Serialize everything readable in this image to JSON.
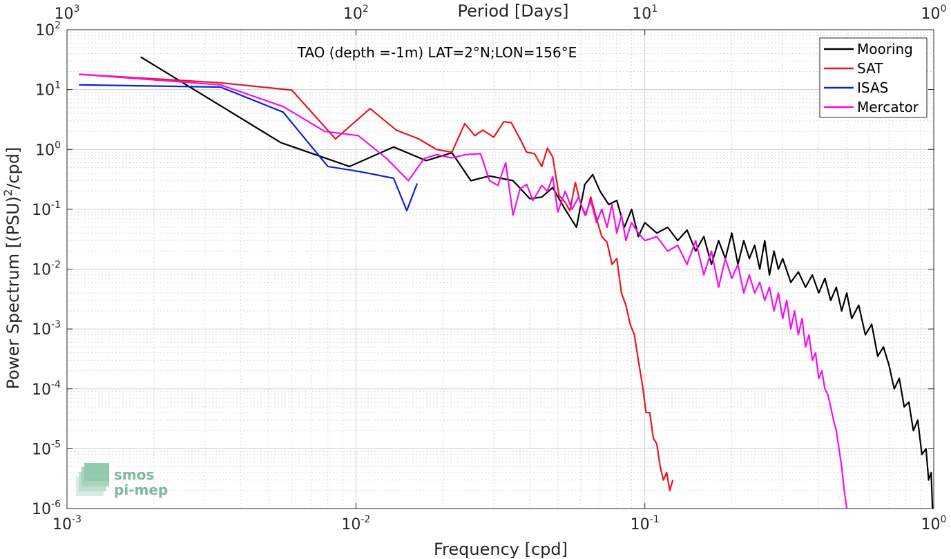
{
  "chart_data": {
    "type": "line",
    "title": "TAO (depth =-1m) LAT=2°N;LON=156°E",
    "xlabel": "Frequency [cpd]",
    "ylabel_main": "Power Spectrum [(PSU)",
    "ylabel_sup": "2",
    "ylabel_tail": "/cpd]",
    "top_axis_label": "Period [Days]",
    "x_scale": "log",
    "y_scale": "log",
    "xlim": [
      0.001,
      1
    ],
    "ylim": [
      1e-06,
      100
    ],
    "grid": true,
    "legend_placement": "top-right",
    "x_ticks": [
      {
        "value": 0.001,
        "base": "10",
        "exp": "-3"
      },
      {
        "value": 0.01,
        "base": "10",
        "exp": "-2"
      },
      {
        "value": 0.1,
        "base": "10",
        "exp": "-1"
      },
      {
        "value": 1,
        "base": "10",
        "exp": "0"
      }
    ],
    "y_ticks": [
      {
        "value": 1e-06,
        "base": "10",
        "exp": "-6"
      },
      {
        "value": 1e-05,
        "base": "10",
        "exp": "-5"
      },
      {
        "value": 0.0001,
        "base": "10",
        "exp": "-4"
      },
      {
        "value": 0.001,
        "base": "10",
        "exp": "-3"
      },
      {
        "value": 0.01,
        "base": "10",
        "exp": "-2"
      },
      {
        "value": 0.1,
        "base": "10",
        "exp": "-1"
      },
      {
        "value": 1,
        "base": "10",
        "exp": "0"
      },
      {
        "value": 10,
        "base": "10",
        "exp": "1"
      },
      {
        "value": 100,
        "base": "10",
        "exp": "2"
      }
    ],
    "top_ticks": [
      {
        "value": 0.001,
        "base": "10",
        "exp": "3"
      },
      {
        "value": 0.01,
        "base": "10",
        "exp": "2"
      },
      {
        "value": 0.1,
        "base": "10",
        "exp": "1"
      },
      {
        "value": 1,
        "base": "10",
        "exp": "0"
      }
    ],
    "series": [
      {
        "name": "Mooring",
        "color": "#000000",
        "x": [
          0.0018,
          0.0055,
          0.0095,
          0.0135,
          0.0175,
          0.0215,
          0.025,
          0.029,
          0.035,
          0.04,
          0.044,
          0.048,
          0.053,
          0.058,
          0.062,
          0.066,
          0.07,
          0.075,
          0.08,
          0.085,
          0.09,
          0.095,
          0.1,
          0.11,
          0.12,
          0.13,
          0.14,
          0.15,
          0.16,
          0.17,
          0.18,
          0.19,
          0.2,
          0.21,
          0.22,
          0.23,
          0.24,
          0.25,
          0.26,
          0.27,
          0.28,
          0.29,
          0.3,
          0.32,
          0.34,
          0.36,
          0.38,
          0.4,
          0.42,
          0.44,
          0.46,
          0.48,
          0.5,
          0.52,
          0.55,
          0.58,
          0.61,
          0.64,
          0.67,
          0.7,
          0.73,
          0.76,
          0.79,
          0.82,
          0.85,
          0.88,
          0.91,
          0.94,
          0.96,
          0.98,
          0.99
        ],
        "y": [
          35,
          1.3,
          0.52,
          1.1,
          0.65,
          0.88,
          0.3,
          0.36,
          0.3,
          0.15,
          0.16,
          0.23,
          0.1,
          0.05,
          0.26,
          0.38,
          0.2,
          0.12,
          0.14,
          0.05,
          0.1,
          0.035,
          0.06,
          0.04,
          0.05,
          0.03,
          0.045,
          0.02,
          0.035,
          0.012,
          0.03,
          0.015,
          0.04,
          0.012,
          0.03,
          0.015,
          0.025,
          0.01,
          0.03,
          0.008,
          0.02,
          0.01,
          0.015,
          0.006,
          0.009,
          0.005,
          0.008,
          0.004,
          0.007,
          0.003,
          0.005,
          0.002,
          0.004,
          0.0015,
          0.0025,
          0.0008,
          0.0012,
          0.00035,
          0.0005,
          0.00025,
          0.0001,
          0.00015,
          5e-05,
          6e-05,
          2e-05,
          3e-05,
          8e-06,
          1e-05,
          3e-06,
          4e-06,
          1e-06
        ]
      },
      {
        "name": "SAT",
        "color": "#e8151b",
        "x": [
          0.0011,
          0.0034,
          0.006,
          0.0085,
          0.0112,
          0.0138,
          0.0165,
          0.019,
          0.0215,
          0.0238,
          0.0258,
          0.0275,
          0.03,
          0.0325,
          0.0345,
          0.037,
          0.039,
          0.0415,
          0.044,
          0.046,
          0.048,
          0.0505,
          0.053,
          0.055,
          0.0575,
          0.06,
          0.0625,
          0.065,
          0.068,
          0.071,
          0.074,
          0.077,
          0.08,
          0.083,
          0.086,
          0.089,
          0.092,
          0.095,
          0.098,
          0.101,
          0.104,
          0.107,
          0.11,
          0.113,
          0.116,
          0.119,
          0.122,
          0.125
        ],
        "y": [
          18,
          13,
          9.8,
          1.5,
          4.8,
          2.1,
          1.5,
          1.0,
          0.9,
          2.7,
          1.7,
          2.1,
          1.6,
          2.9,
          2.8,
          1.5,
          0.9,
          0.85,
          0.52,
          1.05,
          0.75,
          0.17,
          0.13,
          0.095,
          0.28,
          0.12,
          0.08,
          0.16,
          0.07,
          0.035,
          0.028,
          0.012,
          0.015,
          0.004,
          0.0025,
          0.0012,
          0.0008,
          0.0003,
          0.00012,
          4e-05,
          4e-05,
          1.5e-05,
          1.2e-05,
          5e-06,
          3e-06,
          4e-06,
          2e-06,
          3e-06
        ]
      },
      {
        "name": "ISAS",
        "color": "#0b1fe0",
        "x": [
          0.0011,
          0.0034,
          0.0056,
          0.008,
          0.0105,
          0.0135,
          0.015,
          0.0163
        ],
        "y": [
          12,
          11,
          4.2,
          0.52,
          0.42,
          0.33,
          0.095,
          0.27
        ]
      },
      {
        "name": "Mercator",
        "color": "#f50cf0",
        "x": [
          0.0011,
          0.0034,
          0.0056,
          0.0078,
          0.0102,
          0.0128,
          0.0152,
          0.0172,
          0.019,
          0.0215,
          0.024,
          0.027,
          0.029,
          0.031,
          0.033,
          0.035,
          0.037,
          0.039,
          0.041,
          0.044,
          0.046,
          0.048,
          0.05,
          0.053,
          0.056,
          0.059,
          0.062,
          0.065,
          0.068,
          0.071,
          0.074,
          0.077,
          0.08,
          0.083,
          0.086,
          0.09,
          0.095,
          0.1,
          0.11,
          0.12,
          0.13,
          0.14,
          0.15,
          0.16,
          0.17,
          0.18,
          0.19,
          0.2,
          0.21,
          0.22,
          0.23,
          0.24,
          0.25,
          0.26,
          0.27,
          0.28,
          0.29,
          0.3,
          0.31,
          0.32,
          0.33,
          0.34,
          0.35,
          0.36,
          0.37,
          0.38,
          0.39,
          0.4,
          0.41,
          0.42,
          0.43,
          0.44,
          0.45,
          0.46,
          0.47,
          0.48,
          0.49,
          0.5
        ],
        "y": [
          18,
          12,
          5.2,
          2.0,
          1.7,
          0.7,
          0.3,
          0.7,
          0.82,
          0.72,
          0.82,
          0.85,
          0.3,
          0.25,
          0.6,
          0.08,
          0.22,
          0.26,
          0.14,
          0.25,
          0.2,
          0.35,
          0.09,
          0.2,
          0.1,
          0.16,
          0.08,
          0.14,
          0.06,
          0.1,
          0.05,
          0.12,
          0.04,
          0.08,
          0.03,
          0.06,
          0.04,
          0.03,
          0.035,
          0.02,
          0.025,
          0.012,
          0.03,
          0.008,
          0.02,
          0.005,
          0.015,
          0.007,
          0.012,
          0.004,
          0.008,
          0.004,
          0.006,
          0.003,
          0.005,
          0.002,
          0.004,
          0.0015,
          0.003,
          0.001,
          0.002,
          0.0008,
          0.0015,
          0.0005,
          0.0008,
          0.0003,
          0.0004,
          0.00015,
          0.0002,
          0.0001,
          8e-05,
          5e-05,
          3e-05,
          2e-05,
          1e-05,
          5e-06,
          2e-06,
          1e-06
        ]
      }
    ],
    "logo": {
      "line1": "smos",
      "line2": "pi-mep"
    }
  }
}
